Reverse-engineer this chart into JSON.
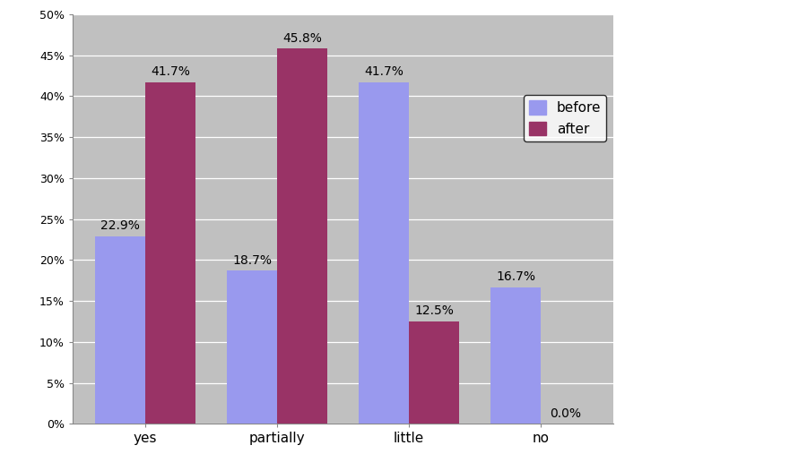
{
  "categories": [
    "yes",
    "partially",
    "little",
    "no"
  ],
  "before": [
    22.9,
    18.7,
    41.7,
    16.7
  ],
  "after": [
    41.7,
    45.8,
    12.5,
    0.0
  ],
  "before_color": "#9999ee",
  "after_color": "#993366",
  "background_color": "#c0c0c0",
  "ylim": [
    0,
    50
  ],
  "yticks": [
    0,
    5,
    10,
    15,
    20,
    25,
    30,
    35,
    40,
    45,
    50
  ],
  "ytick_labels": [
    "0%",
    "5%",
    "10%",
    "15%",
    "20%",
    "25%",
    "30%",
    "35%",
    "40%",
    "45%",
    "50%"
  ],
  "legend_labels": [
    "before",
    "after"
  ],
  "bar_width": 0.38,
  "annotation_fontsize": 10,
  "figsize": [
    9.0,
    5.26
  ],
  "dpi": 100
}
